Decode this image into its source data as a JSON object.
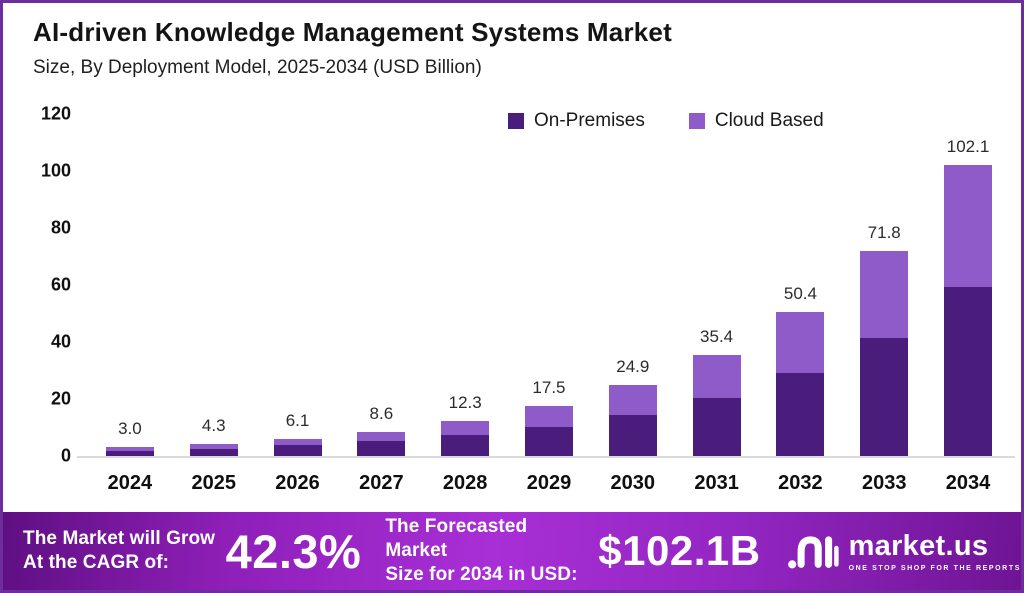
{
  "header": {
    "title": "AI-driven Knowledge Management Systems Market",
    "subtitle": "Size, By Deployment Model, 2025-2034 (USD Billion)"
  },
  "legend": {
    "items": [
      {
        "label": "On-Premises",
        "color": "#4a1d7d"
      },
      {
        "label": "Cloud Based",
        "color": "#8e5bc8"
      }
    ]
  },
  "chart_data": {
    "type": "bar",
    "stacked": true,
    "title": "AI-driven Knowledge Management Systems Market Size, By Deployment Model, 2025-2034 (USD Billion)",
    "categories": [
      "2024",
      "2025",
      "2026",
      "2027",
      "2028",
      "2029",
      "2030",
      "2031",
      "2032",
      "2033",
      "2034"
    ],
    "series": [
      {
        "name": "On-Premises",
        "color": "#4a1d7d",
        "values": [
          1.8,
          2.6,
          3.7,
          5.1,
          7.2,
          10.2,
          14.4,
          20.5,
          29.0,
          41.3,
          59.3
        ]
      },
      {
        "name": "Cloud Based",
        "color": "#8e5bc8",
        "values": [
          1.2,
          1.7,
          2.4,
          3.5,
          5.1,
          7.3,
          10.5,
          14.9,
          21.4,
          30.5,
          42.8
        ]
      }
    ],
    "totals": [
      3.0,
      4.3,
      6.1,
      8.6,
      12.3,
      17.5,
      24.9,
      35.4,
      50.4,
      71.8,
      102.1
    ],
    "xlabel": "",
    "ylabel": "",
    "ylim": [
      0,
      120
    ],
    "y_ticks": [
      0,
      20,
      40,
      60,
      80,
      100,
      120
    ],
    "grid": false,
    "legend_position": "top",
    "value_labels": "totals shown above each bar"
  },
  "footer": {
    "cagr_label_line1": "The Market will Grow",
    "cagr_label_line2": "At the CAGR of:",
    "cagr_value": "42.3%",
    "forecast_label_line1": "The Forecasted Market",
    "forecast_label_line2": "Size for 2034 in USD:",
    "forecast_value": "$102.1B",
    "brand_name": "market.us",
    "brand_tagline": "ONE STOP SHOP FOR THE REPORTS"
  },
  "colors": {
    "on_premises": "#4a1d7d",
    "cloud_based": "#8e5bc8",
    "frame_border": "#6e2d9e",
    "axis_line": "#dadada",
    "banner_center": "#a82fd6",
    "banner_edge": "#5f0f82",
    "text": "#141414"
  }
}
